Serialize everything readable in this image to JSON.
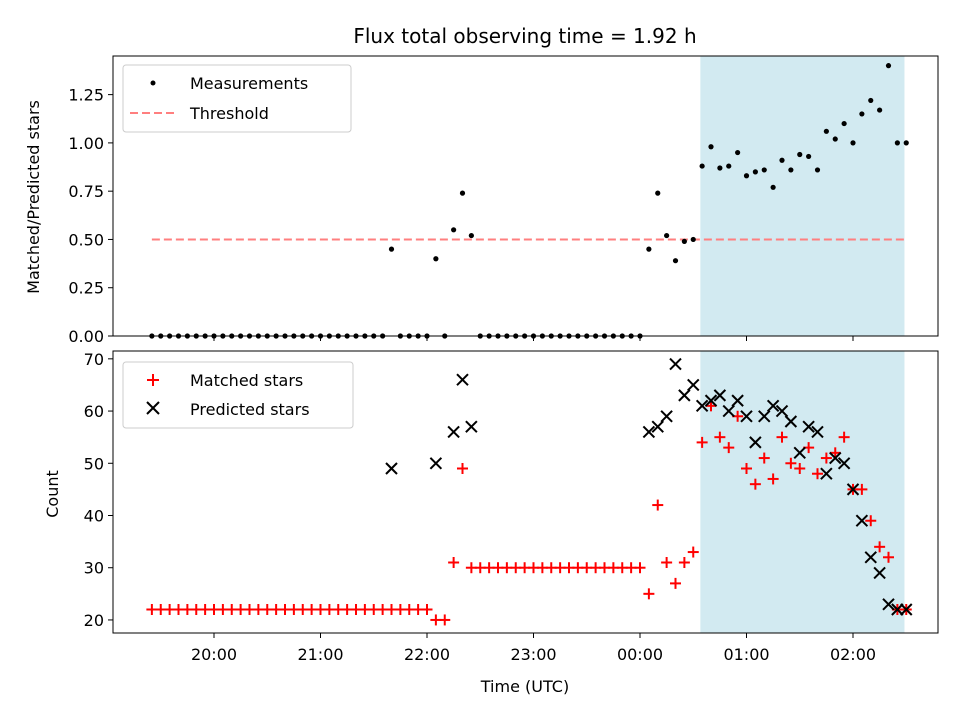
{
  "chart_data": [
    {
      "type": "scatter",
      "title": "Flux total observing time = 1.92 h",
      "ylabel": "Matched/Predicted stars",
      "xlabel": "",
      "ylim": [
        0,
        1.45
      ],
      "yticks": [
        0.0,
        0.25,
        0.5,
        0.75,
        1.0,
        1.25
      ],
      "ytick_labels": [
        "0.00",
        "0.25",
        "0.50",
        "0.75",
        "1.00",
        "1.25"
      ],
      "legend": {
        "position": "top-left",
        "entries": [
          "Measurements",
          "Threshold"
        ]
      },
      "colors": {
        "measurements": "#000000",
        "threshold": "#ff7f7f",
        "span": "#add8e6"
      },
      "threshold_value": 0.5,
      "threshold_x_range": [
        "19:25",
        "02:30"
      ],
      "observing_span": [
        "00:34",
        "02:29"
      ],
      "series": [
        {
          "name": "Measurements",
          "x": [
            "19:25",
            "19:30",
            "19:35",
            "19:40",
            "19:45",
            "19:50",
            "19:55",
            "20:00",
            "20:05",
            "20:10",
            "20:15",
            "20:20",
            "20:25",
            "20:30",
            "20:35",
            "20:40",
            "20:45",
            "20:50",
            "20:55",
            "21:00",
            "21:05",
            "21:10",
            "21:15",
            "21:20",
            "21:25",
            "21:30",
            "21:35",
            "21:40",
            "21:45",
            "21:50",
            "21:55",
            "22:00",
            "22:05",
            "22:10",
            "22:15",
            "22:20",
            "22:25",
            "22:30",
            "22:35",
            "22:40",
            "22:45",
            "22:50",
            "22:55",
            "23:00",
            "23:05",
            "23:10",
            "23:15",
            "23:20",
            "23:25",
            "23:30",
            "23:35",
            "23:40",
            "23:45",
            "23:50",
            "23:55",
            "00:00",
            "00:05",
            "00:10",
            "00:15",
            "00:20",
            "00:25",
            "00:30",
            "00:35",
            "00:40",
            "00:45",
            "00:50",
            "00:55",
            "01:00",
            "01:05",
            "01:10",
            "01:15",
            "01:20",
            "01:25",
            "01:30",
            "01:35",
            "01:40",
            "01:45",
            "01:50",
            "01:55",
            "02:00",
            "02:05",
            "02:10",
            "02:15",
            "02:20",
            "02:25",
            "02:30"
          ],
          "y": [
            0,
            0,
            0,
            0,
            0,
            0,
            0,
            0,
            0,
            0,
            0,
            0,
            0,
            0,
            0,
            0,
            0,
            0,
            0,
            0,
            0,
            0,
            0,
            0,
            0,
            0,
            0,
            0.45,
            0,
            0,
            0,
            0,
            0.4,
            0,
            0.55,
            0.74,
            0.52,
            0,
            0,
            0,
            0,
            0,
            0,
            0,
            0,
            0,
            0,
            0,
            0,
            0,
            0,
            0,
            0,
            0,
            0,
            0,
            0.45,
            0.74,
            0.52,
            0.39,
            0.49,
            0.5,
            0.88,
            0.98,
            0.87,
            0.88,
            0.95,
            0.83,
            0.85,
            0.86,
            0.77,
            0.91,
            0.86,
            0.94,
            0.93,
            0.86,
            1.06,
            1.02,
            1.1,
            1.0,
            1.15,
            1.22,
            1.17,
            1.4,
            1.0,
            1.0
          ]
        },
        {
          "name": "Threshold",
          "x": [
            "19:25",
            "02:30"
          ],
          "y": [
            0.5,
            0.5
          ]
        }
      ]
    },
    {
      "type": "scatter",
      "title": "",
      "xlabel": "Time (UTC)",
      "ylabel": "Count",
      "ylim": [
        17.5,
        71.5
      ],
      "yticks": [
        20,
        30,
        40,
        50,
        60,
        70
      ],
      "ytick_labels": [
        "20",
        "30",
        "40",
        "50",
        "60",
        "70"
      ],
      "xticks": [
        "20:00",
        "21:00",
        "22:00",
        "23:00",
        "00:00",
        "01:00",
        "02:00"
      ],
      "xtick_labels": [
        "20:00",
        "21:00",
        "22:00",
        "23:00",
        "00:00",
        "01:00",
        "02:00"
      ],
      "legend": {
        "position": "top-left",
        "entries": [
          "Matched stars",
          "Predicted stars"
        ]
      },
      "colors": {
        "matched": "#ff0000",
        "predicted": "#000000",
        "span": "#add8e6"
      },
      "observing_span": [
        "00:34",
        "02:29"
      ],
      "series": [
        {
          "name": "Matched stars",
          "x": [
            "19:25",
            "19:30",
            "19:35",
            "19:40",
            "19:45",
            "19:50",
            "19:55",
            "20:00",
            "20:05",
            "20:10",
            "20:15",
            "20:20",
            "20:25",
            "20:30",
            "20:35",
            "20:40",
            "20:45",
            "20:50",
            "20:55",
            "21:00",
            "21:05",
            "21:10",
            "21:15",
            "21:20",
            "21:25",
            "21:30",
            "21:35",
            "21:40",
            "21:45",
            "21:50",
            "21:55",
            "22:00",
            "22:05",
            "22:10",
            "22:15",
            "22:20",
            "22:25",
            "22:30",
            "22:35",
            "22:40",
            "22:45",
            "22:50",
            "22:55",
            "23:00",
            "23:05",
            "23:10",
            "23:15",
            "23:20",
            "23:25",
            "23:30",
            "23:35",
            "23:40",
            "23:45",
            "23:50",
            "23:55",
            "00:00",
            "00:05",
            "00:10",
            "00:15",
            "00:20",
            "00:25",
            "00:30",
            "00:35",
            "00:40",
            "00:45",
            "00:50",
            "00:55",
            "01:00",
            "01:05",
            "01:10",
            "01:15",
            "01:20",
            "01:25",
            "01:30",
            "01:35",
            "01:40",
            "01:45",
            "01:50",
            "01:55",
            "02:00",
            "02:05",
            "02:10",
            "02:15",
            "02:20",
            "02:25",
            "02:30"
          ],
          "y": [
            22,
            22,
            22,
            22,
            22,
            22,
            22,
            22,
            22,
            22,
            22,
            22,
            22,
            22,
            22,
            22,
            22,
            22,
            22,
            22,
            22,
            22,
            22,
            22,
            22,
            22,
            22,
            22,
            22,
            22,
            22,
            22,
            20,
            20,
            31,
            49,
            30,
            30,
            30,
            30,
            30,
            30,
            30,
            30,
            30,
            30,
            30,
            30,
            30,
            30,
            30,
            30,
            30,
            30,
            30,
            30,
            25,
            42,
            31,
            27,
            31,
            33,
            54,
            61,
            55,
            53,
            59,
            49,
            46,
            51,
            47,
            55,
            50,
            49,
            53,
            48,
            51,
            52,
            55,
            45,
            45,
            39,
            34,
            32,
            22,
            22
          ]
        },
        {
          "name": "Predicted stars",
          "x": [
            "21:40",
            "22:05",
            "22:15",
            "22:20",
            "22:25",
            "00:05",
            "00:10",
            "00:15",
            "00:20",
            "00:25",
            "00:30",
            "00:35",
            "00:40",
            "00:45",
            "00:50",
            "00:55",
            "01:00",
            "01:05",
            "01:10",
            "01:15",
            "01:20",
            "01:25",
            "01:30",
            "01:35",
            "01:40",
            "01:45",
            "01:50",
            "01:55",
            "02:00",
            "02:05",
            "02:10",
            "02:15",
            "02:20",
            "02:25",
            "02:30"
          ],
          "y": [
            49,
            50,
            56,
            66,
            57,
            56,
            57,
            59,
            69,
            63,
            65,
            61,
            62,
            63,
            60,
            62,
            59,
            54,
            59,
            61,
            60,
            58,
            52,
            57,
            56,
            48,
            51,
            50,
            45,
            39,
            32,
            29,
            23,
            22,
            22
          ]
        }
      ]
    }
  ]
}
